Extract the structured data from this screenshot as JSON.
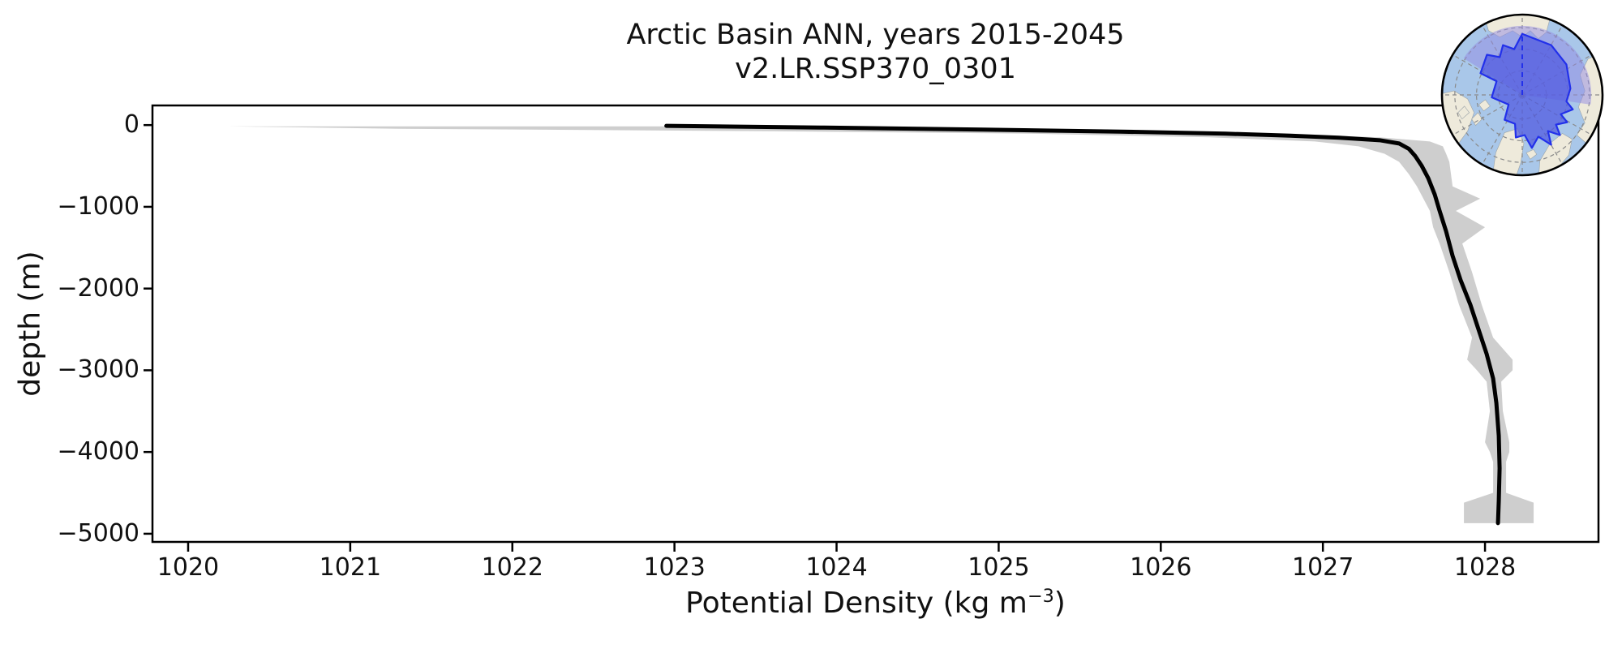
{
  "figure": {
    "background": "#ffffff"
  },
  "chart_data": {
    "type": "line",
    "title": "Arctic Basin ANN, years 2015-2045\nv2.LR.SSP370_0301",
    "title_line1": "Arctic Basin ANN, years 2015-2045",
    "title_line2": "v2.LR.SSP370_0301",
    "xlabel": "Potential Density (kg m⁻³)",
    "xlabel_parts": {
      "prefix": "Potential Density (kg m",
      "superscript": "−3",
      "suffix": ")"
    },
    "ylabel": "depth (m)",
    "grid": false,
    "legend": null,
    "xlim": [
      1019.78,
      1028.7
    ],
    "ylim": [
      -5100,
      240
    ],
    "x_ticks": {
      "values": [
        1020,
        1021,
        1022,
        1023,
        1024,
        1025,
        1026,
        1027,
        1028
      ],
      "labels": [
        "1020",
        "1021",
        "1022",
        "1023",
        "1024",
        "1025",
        "1026",
        "1027",
        "1028"
      ]
    },
    "y_ticks": {
      "values": [
        0,
        -1000,
        -2000,
        -3000,
        -4000,
        -5000
      ],
      "labels": [
        "0",
        "−1000",
        "−2000",
        "−3000",
        "−4000",
        "−5000"
      ]
    },
    "series": [
      {
        "name": "ensemble mean potential density profile",
        "color": "#000000",
        "line_width": 5,
        "x": [
          1022.95,
          1023.9,
          1024.9,
          1025.75,
          1026.4,
          1026.8,
          1027.1,
          1027.35,
          1027.47,
          1027.53,
          1027.57,
          1027.61,
          1027.65,
          1027.69,
          1027.72,
          1027.76,
          1027.8,
          1027.85,
          1027.91,
          1027.96,
          1028.01,
          1028.05,
          1028.07,
          1028.085,
          1028.09,
          1028.085,
          1028.08
        ],
        "y": [
          -10,
          -30,
          -55,
          -80,
          -105,
          -130,
          -155,
          -185,
          -225,
          -290,
          -380,
          -500,
          -650,
          -850,
          -1050,
          -1300,
          -1600,
          -1900,
          -2200,
          -2500,
          -2800,
          -3100,
          -3400,
          -3800,
          -4200,
          -4600,
          -4870
        ]
      }
    ],
    "uncertainty_band": {
      "name": "ensemble spread (min–max)",
      "color": "#c9c9c9",
      "opacity": 0.9,
      "rows_depth_min_max": [
        [
          -15,
          1020.25,
          1023.25
        ],
        [
          -45,
          1021.3,
          1024.6
        ],
        [
          -75,
          1023.6,
          1025.9
        ],
        [
          -105,
          1025.2,
          1026.7
        ],
        [
          -150,
          1026.3,
          1027.35
        ],
        [
          -200,
          1026.95,
          1027.66
        ],
        [
          -260,
          1027.22,
          1027.74
        ],
        [
          -350,
          1027.38,
          1027.76
        ],
        [
          -450,
          1027.47,
          1027.78
        ],
        [
          -600,
          1027.53,
          1027.79
        ],
        [
          -750,
          1027.58,
          1027.8
        ],
        [
          -900,
          1027.62,
          1027.97
        ],
        [
          -1050,
          1027.66,
          1027.82
        ],
        [
          -1250,
          1027.68,
          1028.0
        ],
        [
          -1450,
          1027.72,
          1027.86
        ],
        [
          -1800,
          1027.78,
          1027.92
        ],
        [
          -2200,
          1027.84,
          1027.98
        ],
        [
          -2600,
          1027.92,
          1028.05
        ],
        [
          -2870,
          1027.89,
          1028.17
        ],
        [
          -3000,
          1027.95,
          1028.17
        ],
        [
          -3140,
          1028.01,
          1028.1
        ],
        [
          -3500,
          1028.03,
          1028.11
        ],
        [
          -3880,
          1028.0,
          1028.15
        ],
        [
          -4000,
          1028.03,
          1028.15
        ],
        [
          -4120,
          1028.05,
          1028.13
        ],
        [
          -4500,
          1028.05,
          1028.13
        ],
        [
          -4620,
          1027.87,
          1028.3
        ],
        [
          -4870,
          1027.87,
          1028.3
        ]
      ]
    }
  },
  "inset_map": {
    "name": "arctic-basin-location-map",
    "projection": "north-polar-stereographic",
    "colors": {
      "ocean": "#a9c7e9",
      "land": "#eeeadb",
      "land_edge": "#9aa3a8",
      "region_fill": "#4d57e0",
      "region_edge": "#2230ea",
      "sector_fill": "#9189e4",
      "graticule": "#8a8a8a",
      "border": "#000000"
    }
  }
}
